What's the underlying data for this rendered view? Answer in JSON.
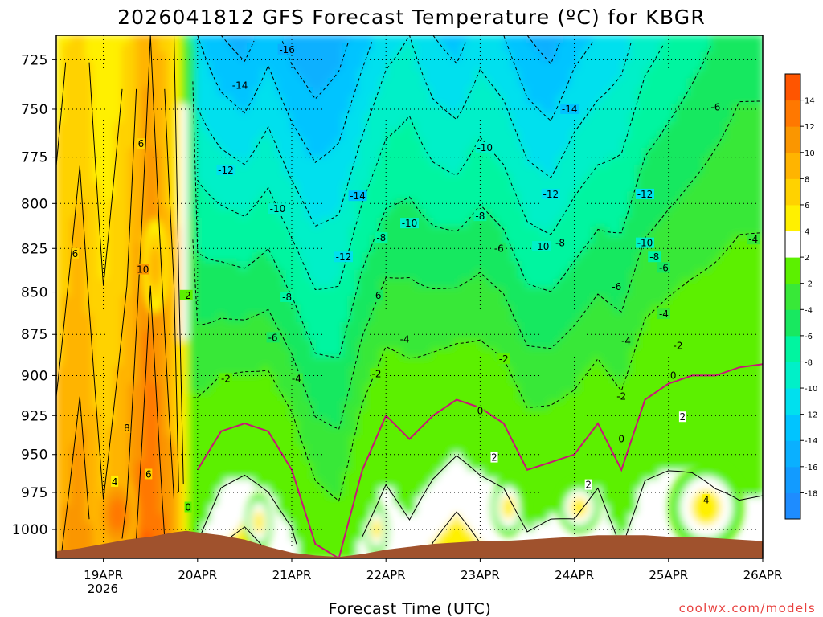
{
  "chart_data": {
    "type": "heatmap",
    "title": "2026041812 GFS Forecast Temperature (ºC) for KBGR",
    "xlabel": "Forecast Time (UTC)",
    "ylabel": "",
    "credit": "coolwx.com/models",
    "x_ticks": [
      "19APR",
      "20APR",
      "21APR",
      "22APR",
      "23APR",
      "24APR",
      "25APR",
      "26APR"
    ],
    "x_year_label": "2026",
    "x_range_days": [
      18.5,
      26.0
    ],
    "y_ticks": [
      725,
      750,
      775,
      800,
      825,
      850,
      875,
      900,
      925,
      950,
      975,
      1000
    ],
    "y_range_hpa": [
      713,
      1020
    ],
    "y_scale": "log-pressure (reversed)",
    "units": "ºC",
    "colorbar": {
      "levels": [
        -20,
        -18,
        -16,
        -14,
        -12,
        -10,
        -8,
        -6,
        -4,
        -2,
        2,
        4,
        6,
        8,
        10,
        12,
        14,
        16
      ],
      "tick_labels": [
        "-18",
        "-16",
        "-14",
        "-12",
        "-10",
        "-8",
        "-6",
        "-4",
        "-2",
        "2",
        "4",
        "6",
        "8",
        "10",
        "12",
        "14"
      ],
      "colors": [
        "#1e8cff",
        "#129bff",
        "#0ab0ff",
        "#00c4ff",
        "#00e0ee",
        "#00f0c8",
        "#00f5a0",
        "#18e860",
        "#38e838",
        "#5cf000",
        "#ffffff",
        "#fff000",
        "#ffd200",
        "#ffb400",
        "#fa9600",
        "#ff7800",
        "#ff5500"
      ]
    },
    "columns": [
      {
        "day": 18.5,
        "t_top": 5,
        "freeze_hpa": 1100,
        "terrain_hpa": 1015
      },
      {
        "day": 18.75,
        "t_top": 7,
        "freeze_hpa": 1100,
        "terrain_hpa": 1013
      },
      {
        "day": 19.0,
        "t_top": 4,
        "freeze_hpa": 1100,
        "terrain_hpa": 1010
      },
      {
        "day": 19.25,
        "t_top": 6,
        "freeze_hpa": 1100,
        "terrain_hpa": 1007
      },
      {
        "day": 19.5,
        "t_top": 10,
        "freeze_hpa": 1100,
        "terrain_hpa": 1005
      },
      {
        "day": 19.75,
        "t_top": 6,
        "freeze_hpa": 1100,
        "terrain_hpa": 1002
      },
      {
        "day": 19.88,
        "t_top": 1,
        "freeze_hpa": 1100,
        "terrain_hpa": 1001
      },
      {
        "day": 20.0,
        "t_top": -12,
        "freeze_hpa": 960,
        "terrain_hpa": 1002
      },
      {
        "day": 20.25,
        "t_top": -14,
        "freeze_hpa": 935,
        "terrain_hpa": 1004
      },
      {
        "day": 20.5,
        "t_top": -15,
        "freeze_hpa": 930,
        "terrain_hpa": 1007
      },
      {
        "day": 20.75,
        "t_top": -13,
        "freeze_hpa": 935,
        "terrain_hpa": 1012
      },
      {
        "day": 21.0,
        "t_top": -15,
        "freeze_hpa": 960,
        "terrain_hpa": 1016
      },
      {
        "day": 21.25,
        "t_top": -16,
        "freeze_hpa": 1010,
        "terrain_hpa": 1018
      },
      {
        "day": 21.5,
        "t_top": -15,
        "freeze_hpa": 1030,
        "terrain_hpa": 1019
      },
      {
        "day": 21.75,
        "t_top": -13,
        "freeze_hpa": 960,
        "terrain_hpa": 1017
      },
      {
        "day": 22.0,
        "t_top": -11,
        "freeze_hpa": 925,
        "terrain_hpa": 1014
      },
      {
        "day": 22.25,
        "t_top": -10,
        "freeze_hpa": 940,
        "terrain_hpa": 1012
      },
      {
        "day": 22.5,
        "t_top": -12,
        "freeze_hpa": 925,
        "terrain_hpa": 1010
      },
      {
        "day": 22.75,
        "t_top": -13,
        "freeze_hpa": 915,
        "terrain_hpa": 1009
      },
      {
        "day": 23.0,
        "t_top": -11,
        "freeze_hpa": 920,
        "terrain_hpa": 1008
      },
      {
        "day": 23.25,
        "t_top": -12,
        "freeze_hpa": 930,
        "terrain_hpa": 1008
      },
      {
        "day": 23.5,
        "t_top": -14,
        "freeze_hpa": 960,
        "terrain_hpa": 1007
      },
      {
        "day": 23.75,
        "t_top": -15,
        "freeze_hpa": 955,
        "terrain_hpa": 1006
      },
      {
        "day": 24.0,
        "t_top": -13,
        "freeze_hpa": 950,
        "terrain_hpa": 1005
      },
      {
        "day": 24.25,
        "t_top": -12,
        "freeze_hpa": 930,
        "terrain_hpa": 1004
      },
      {
        "day": 24.5,
        "t_top": -11,
        "freeze_hpa": 960,
        "terrain_hpa": 1004
      },
      {
        "day": 24.75,
        "t_top": -9,
        "freeze_hpa": 915,
        "terrain_hpa": 1004
      },
      {
        "day": 25.0,
        "t_top": -8,
        "freeze_hpa": 905,
        "terrain_hpa": 1005
      },
      {
        "day": 25.25,
        "t_top": -7,
        "freeze_hpa": 900,
        "terrain_hpa": 1005
      },
      {
        "day": 25.5,
        "t_top": -6,
        "freeze_hpa": 900,
        "terrain_hpa": 1006
      },
      {
        "day": 25.75,
        "t_top": -5,
        "freeze_hpa": 895,
        "terrain_hpa": 1007
      },
      {
        "day": 26.0,
        "t_top": -5,
        "freeze_hpa": 893,
        "terrain_hpa": 1008
      }
    ],
    "warm_pockets": [
      {
        "day": 19.15,
        "hpa": 990,
        "t": 12,
        "w_day": 0.45,
        "h_hpa": 55
      },
      {
        "day": 19.55,
        "hpa": 835,
        "t": 9,
        "w_day": 0.3,
        "h_hpa": 55
      },
      {
        "day": 20.65,
        "hpa": 995,
        "t": 5,
        "w_day": 0.28,
        "h_hpa": 40
      },
      {
        "day": 21.9,
        "hpa": 1000,
        "t": 5,
        "w_day": 0.25,
        "h_hpa": 35
      },
      {
        "day": 23.3,
        "hpa": 985,
        "t": 4,
        "w_day": 0.35,
        "h_hpa": 40
      },
      {
        "day": 24.05,
        "hpa": 985,
        "t": 4,
        "w_day": 0.45,
        "h_hpa": 35
      },
      {
        "day": 25.4,
        "hpa": 985,
        "t": 5,
        "w_day": 0.8,
        "h_hpa": 60
      }
    ],
    "contour_labels": [
      {
        "day": 18.7,
        "hpa": 828,
        "text": "6"
      },
      {
        "day": 19.4,
        "hpa": 768,
        "text": "6"
      },
      {
        "day": 19.42,
        "hpa": 837,
        "text": "10"
      },
      {
        "day": 19.25,
        "hpa": 933,
        "text": "8"
      },
      {
        "day": 19.12,
        "hpa": 968,
        "text": "4"
      },
      {
        "day": 19.48,
        "hpa": 963,
        "text": "6"
      },
      {
        "day": 19.88,
        "hpa": 852,
        "text": "-2"
      },
      {
        "day": 19.9,
        "hpa": 985,
        "text": "0"
      },
      {
        "day": 20.3,
        "hpa": 902,
        "text": "-2"
      },
      {
        "day": 20.3,
        "hpa": 782,
        "text": "-12"
      },
      {
        "day": 20.45,
        "hpa": 738,
        "text": "-14"
      },
      {
        "day": 20.95,
        "hpa": 720,
        "text": "-16"
      },
      {
        "day": 20.85,
        "hpa": 803,
        "text": "-10"
      },
      {
        "day": 20.8,
        "hpa": 877,
        "text": "-6"
      },
      {
        "day": 20.95,
        "hpa": 853,
        "text": "-8"
      },
      {
        "day": 21.05,
        "hpa": 902,
        "text": "-4"
      },
      {
        "day": 21.55,
        "hpa": 830,
        "text": "-12"
      },
      {
        "day": 21.7,
        "hpa": 796,
        "text": "-14"
      },
      {
        "day": 21.9,
        "hpa": 852,
        "text": "-6"
      },
      {
        "day": 21.9,
        "hpa": 899,
        "text": "-2"
      },
      {
        "day": 21.95,
        "hpa": 819,
        "text": "-8"
      },
      {
        "day": 22.2,
        "hpa": 878,
        "text": "-4"
      },
      {
        "day": 22.25,
        "hpa": 811,
        "text": "-10"
      },
      {
        "day": 23.0,
        "hpa": 807,
        "text": "-8"
      },
      {
        "day": 23.05,
        "hpa": 770,
        "text": "-10"
      },
      {
        "day": 23.2,
        "hpa": 825,
        "text": "-6"
      },
      {
        "day": 23.25,
        "hpa": 890,
        "text": "-2"
      },
      {
        "day": 23.0,
        "hpa": 922,
        "text": "0"
      },
      {
        "day": 23.15,
        "hpa": 952,
        "text": "2"
      },
      {
        "day": 23.65,
        "hpa": 824,
        "text": "-10"
      },
      {
        "day": 23.85,
        "hpa": 822,
        "text": "-8"
      },
      {
        "day": 23.75,
        "hpa": 795,
        "text": "-12"
      },
      {
        "day": 23.95,
        "hpa": 750,
        "text": "-14"
      },
      {
        "day": 24.15,
        "hpa": 970,
        "text": "2"
      },
      {
        "day": 24.45,
        "hpa": 847,
        "text": "-6"
      },
      {
        "day": 24.55,
        "hpa": 879,
        "text": "-4"
      },
      {
        "day": 24.5,
        "hpa": 913,
        "text": "-2"
      },
      {
        "day": 24.5,
        "hpa": 940,
        "text": "0"
      },
      {
        "day": 24.75,
        "hpa": 795,
        "text": "-12"
      },
      {
        "day": 24.75,
        "hpa": 822,
        "text": "-10"
      },
      {
        "day": 24.85,
        "hpa": 830,
        "text": "-8"
      },
      {
        "day": 24.95,
        "hpa": 836,
        "text": "-6"
      },
      {
        "day": 24.95,
        "hpa": 863,
        "text": "-4"
      },
      {
        "day": 25.1,
        "hpa": 882,
        "text": "-2"
      },
      {
        "day": 25.05,
        "hpa": 900,
        "text": "0"
      },
      {
        "day": 25.15,
        "hpa": 926,
        "text": "2"
      },
      {
        "day": 25.4,
        "hpa": 980,
        "text": "4"
      },
      {
        "day": 25.5,
        "hpa": 749,
        "text": "-6"
      },
      {
        "day": 25.9,
        "hpa": 820,
        "text": "-4"
      }
    ]
  }
}
